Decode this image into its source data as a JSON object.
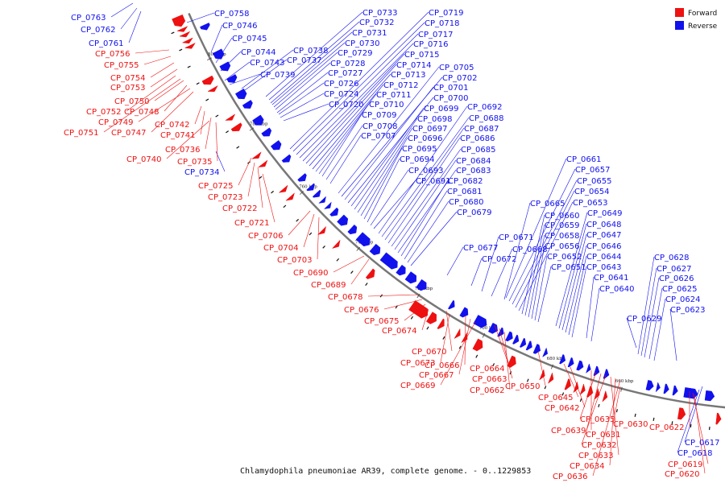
{
  "caption": "Chlamydophila pneumoniae AR39, complete genome. - 0..1229853",
  "legend": [
    {
      "label": "Forward",
      "color": "#ee1111"
    },
    {
      "label": "Reverse",
      "color": "#1111ee"
    }
  ],
  "ticks": [
    "800 kbp",
    "780 kbp",
    "760 kbp",
    "740 kbp",
    "720 kbp",
    "700 kbp",
    "680 kbp",
    "660 kbp"
  ],
  "colors": {
    "forward": "#ee1111",
    "reverse": "#1111ee",
    "backbone": "#777777"
  },
  "genes": [
    {
      "id": "CP_0763",
      "strand": "r"
    },
    {
      "id": "CP_0762",
      "strand": "r"
    },
    {
      "id": "CP_0761",
      "strand": "r"
    },
    {
      "id": "CP_0758",
      "strand": "r"
    },
    {
      "id": "CP_0746",
      "strand": "r"
    },
    {
      "id": "CP_0745",
      "strand": "r"
    },
    {
      "id": "CP_0744",
      "strand": "r"
    },
    {
      "id": "CP_0743",
      "strand": "r"
    },
    {
      "id": "CP_0738",
      "strand": "r"
    },
    {
      "id": "CP_0737",
      "strand": "r"
    },
    {
      "id": "CP_0739",
      "strand": "r"
    },
    {
      "id": "CP_0733",
      "strand": "r"
    },
    {
      "id": "CP_0732",
      "strand": "r"
    },
    {
      "id": "CP_0731",
      "strand": "r"
    },
    {
      "id": "CP_0730",
      "strand": "r"
    },
    {
      "id": "CP_0729",
      "strand": "r"
    },
    {
      "id": "CP_0728",
      "strand": "r"
    },
    {
      "id": "CP_0727",
      "strand": "r"
    },
    {
      "id": "CP_0726",
      "strand": "r"
    },
    {
      "id": "CP_0724",
      "strand": "r"
    },
    {
      "id": "CP_0720",
      "strand": "r"
    },
    {
      "id": "CP_0719",
      "strand": "r"
    },
    {
      "id": "CP_0718",
      "strand": "r"
    },
    {
      "id": "CP_0717",
      "strand": "r"
    },
    {
      "id": "CP_0716",
      "strand": "r"
    },
    {
      "id": "CP_0715",
      "strand": "r"
    },
    {
      "id": "CP_0714",
      "strand": "r"
    },
    {
      "id": "CP_0713",
      "strand": "r"
    },
    {
      "id": "CP_0712",
      "strand": "r"
    },
    {
      "id": "CP_0711",
      "strand": "r"
    },
    {
      "id": "CP_0710",
      "strand": "r"
    },
    {
      "id": "CP_0709",
      "strand": "r"
    },
    {
      "id": "CP_0708",
      "strand": "r"
    },
    {
      "id": "CP_0707",
      "strand": "r"
    },
    {
      "id": "CP_0705",
      "strand": "r"
    },
    {
      "id": "CP_0702",
      "strand": "r"
    },
    {
      "id": "CP_0701",
      "strand": "r"
    },
    {
      "id": "CP_0700",
      "strand": "r"
    },
    {
      "id": "CP_0699",
      "strand": "r"
    },
    {
      "id": "CP_0698",
      "strand": "r"
    },
    {
      "id": "CP_0697",
      "strand": "r"
    },
    {
      "id": "CP_0696",
      "strand": "r"
    },
    {
      "id": "CP_0695",
      "strand": "r"
    },
    {
      "id": "CP_0694",
      "strand": "r"
    },
    {
      "id": "CP_0693",
      "strand": "r"
    },
    {
      "id": "CP_0691",
      "strand": "r"
    },
    {
      "id": "CP_0692",
      "strand": "r"
    },
    {
      "id": "CP_0688",
      "strand": "r"
    },
    {
      "id": "CP_0687",
      "strand": "r"
    },
    {
      "id": "CP_0686",
      "strand": "r"
    },
    {
      "id": "CP_0685",
      "strand": "r"
    },
    {
      "id": "CP_0684",
      "strand": "r"
    },
    {
      "id": "CP_0683",
      "strand": "r"
    },
    {
      "id": "CP_0682",
      "strand": "r"
    },
    {
      "id": "CP_0681",
      "strand": "r"
    },
    {
      "id": "CP_0680",
      "strand": "r"
    },
    {
      "id": "CP_0679",
      "strand": "r"
    },
    {
      "id": "CP_0677",
      "strand": "r"
    },
    {
      "id": "CP_0672",
      "strand": "r"
    },
    {
      "id": "CP_0671",
      "strand": "r"
    },
    {
      "id": "CP_0668",
      "strand": "r"
    },
    {
      "id": "CP_0661",
      "strand": "r"
    },
    {
      "id": "CP_0657",
      "strand": "r"
    },
    {
      "id": "CP_0655",
      "strand": "r"
    },
    {
      "id": "CP_0654",
      "strand": "r"
    },
    {
      "id": "CP_0653",
      "strand": "r"
    },
    {
      "id": "CP_0665",
      "strand": "r"
    },
    {
      "id": "CP_0660",
      "strand": "r"
    },
    {
      "id": "CP_0659",
      "strand": "r"
    },
    {
      "id": "CP_0658",
      "strand": "r"
    },
    {
      "id": "CP_0656",
      "strand": "r"
    },
    {
      "id": "CP_0652",
      "strand": "r"
    },
    {
      "id": "CP_0651",
      "strand": "r"
    },
    {
      "id": "CP_0649",
      "strand": "r"
    },
    {
      "id": "CP_0648",
      "strand": "r"
    },
    {
      "id": "CP_0647",
      "strand": "r"
    },
    {
      "id": "CP_0646",
      "strand": "r"
    },
    {
      "id": "CP_0644",
      "strand": "r"
    },
    {
      "id": "CP_0643",
      "strand": "r"
    },
    {
      "id": "CP_0641",
      "strand": "r"
    },
    {
      "id": "CP_0640",
      "strand": "r"
    },
    {
      "id": "CP_0628",
      "strand": "r"
    },
    {
      "id": "CP_0627",
      "strand": "r"
    },
    {
      "id": "CP_0626",
      "strand": "r"
    },
    {
      "id": "CP_0625",
      "strand": "r"
    },
    {
      "id": "CP_0624",
      "strand": "r"
    },
    {
      "id": "CP_0623",
      "strand": "r"
    },
    {
      "id": "CP_0629",
      "strand": "r"
    },
    {
      "id": "CP_0617",
      "strand": "r"
    },
    {
      "id": "CP_0618",
      "strand": "r"
    },
    {
      "id": "CP_0734",
      "strand": "r"
    },
    {
      "id": "CP_0756",
      "strand": "f"
    },
    {
      "id": "CP_0755",
      "strand": "f"
    },
    {
      "id": "CP_0754",
      "strand": "f"
    },
    {
      "id": "CP_0753",
      "strand": "f"
    },
    {
      "id": "CP_0750",
      "strand": "f"
    },
    {
      "id": "CP_0752",
      "strand": "f"
    },
    {
      "id": "CP_0748",
      "strand": "f"
    },
    {
      "id": "CP_0749",
      "strand": "f"
    },
    {
      "id": "CP_0747",
      "strand": "f"
    },
    {
      "id": "CP_0751",
      "strand": "f"
    },
    {
      "id": "CP_0742",
      "strand": "f"
    },
    {
      "id": "CP_0741",
      "strand": "f"
    },
    {
      "id": "CP_0736",
      "strand": "f"
    },
    {
      "id": "CP_0740",
      "strand": "f"
    },
    {
      "id": "CP_0735",
      "strand": "f"
    },
    {
      "id": "CP_0725",
      "strand": "f"
    },
    {
      "id": "CP_0723",
      "strand": "f"
    },
    {
      "id": "CP_0722",
      "strand": "f"
    },
    {
      "id": "CP_0721",
      "strand": "f"
    },
    {
      "id": "CP_0706",
      "strand": "f"
    },
    {
      "id": "CP_0704",
      "strand": "f"
    },
    {
      "id": "CP_0703",
      "strand": "f"
    },
    {
      "id": "CP_0690",
      "strand": "f"
    },
    {
      "id": "CP_0689",
      "strand": "f"
    },
    {
      "id": "CP_0678",
      "strand": "f"
    },
    {
      "id": "CP_0676",
      "strand": "f"
    },
    {
      "id": "CP_0675",
      "strand": "f"
    },
    {
      "id": "CP_0674",
      "strand": "f"
    },
    {
      "id": "CP_0670",
      "strand": "f"
    },
    {
      "id": "CP_0673",
      "strand": "f"
    },
    {
      "id": "CP_0666",
      "strand": "f"
    },
    {
      "id": "CP_0667",
      "strand": "f"
    },
    {
      "id": "CP_0669",
      "strand": "f"
    },
    {
      "id": "CP_0664",
      "strand": "f"
    },
    {
      "id": "CP_0663",
      "strand": "f"
    },
    {
      "id": "CP_0662",
      "strand": "f"
    },
    {
      "id": "CP_0650",
      "strand": "f"
    },
    {
      "id": "CP_0645",
      "strand": "f"
    },
    {
      "id": "CP_0642",
      "strand": "f"
    },
    {
      "id": "CP_0639",
      "strand": "f"
    },
    {
      "id": "CP_0635",
      "strand": "f"
    },
    {
      "id": "CP_0631",
      "strand": "f"
    },
    {
      "id": "CP_0632",
      "strand": "f"
    },
    {
      "id": "CP_0633",
      "strand": "f"
    },
    {
      "id": "CP_0634",
      "strand": "f"
    },
    {
      "id": "CP_0636",
      "strand": "f"
    },
    {
      "id": "CP_0630",
      "strand": "f"
    },
    {
      "id": "CP_0622",
      "strand": "f"
    },
    {
      "id": "CP_0619",
      "strand": "f"
    },
    {
      "id": "CP_0620",
      "strand": "f"
    }
  ]
}
